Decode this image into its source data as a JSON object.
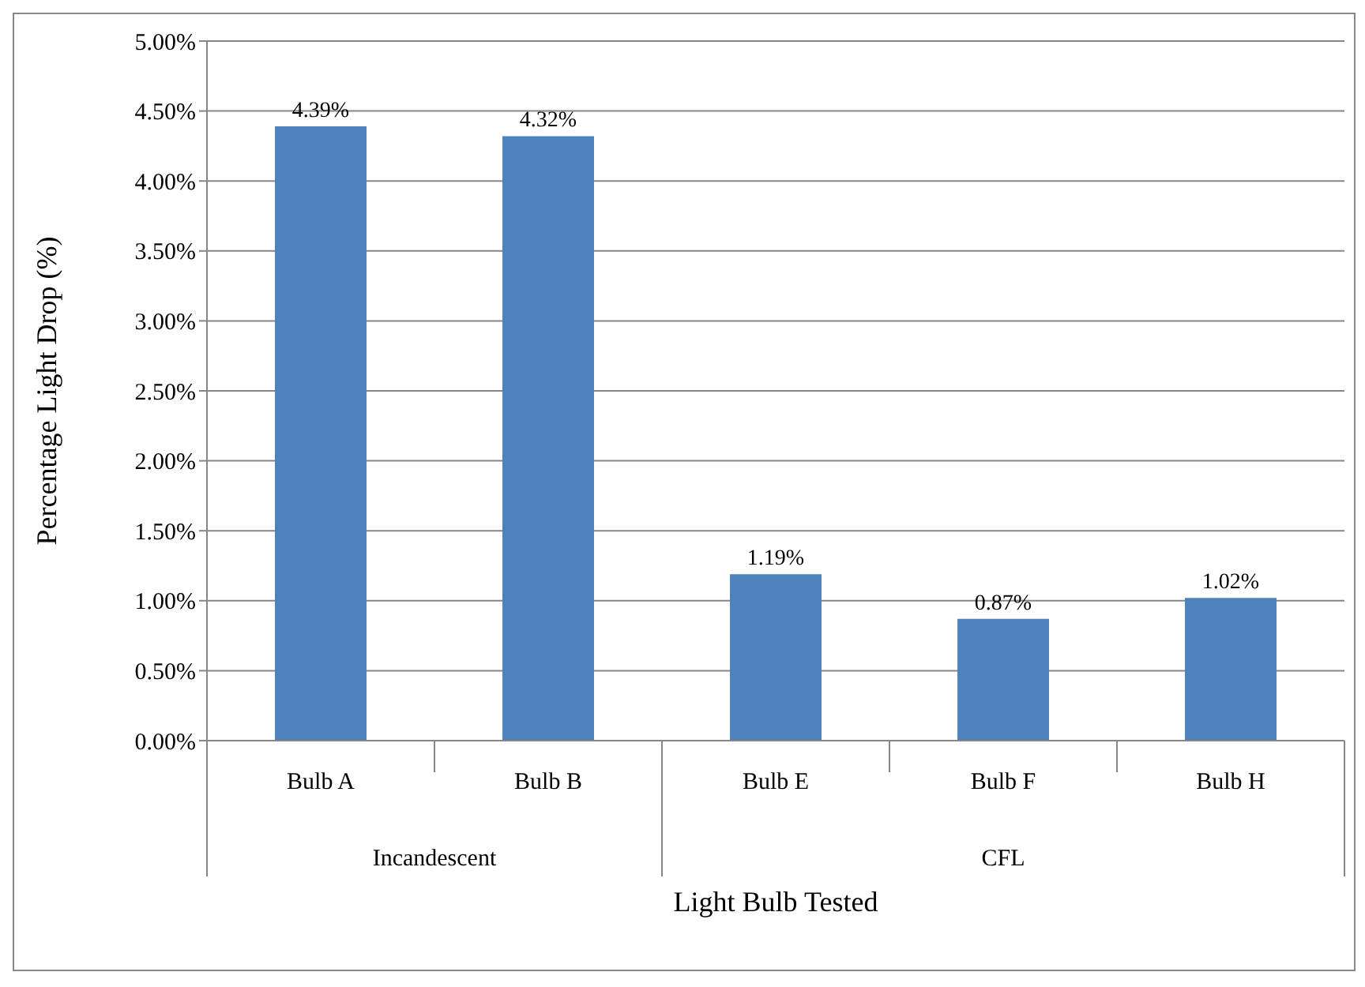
{
  "chart_data": {
    "type": "bar",
    "xlabel": "Light Bulb Tested",
    "ylabel": "Percentage Light Drop (%)",
    "categories": [
      "Bulb A",
      "Bulb B",
      "Bulb E",
      "Bulb F",
      "Bulb H"
    ],
    "values": [
      4.39,
      4.32,
      1.19,
      0.87,
      1.02
    ],
    "value_labels": [
      "4.39%",
      "4.32%",
      "1.19%",
      "0.87%",
      "1.02%"
    ],
    "color": "#4f81bd",
    "ylim": [
      0,
      5
    ],
    "yticks": [
      {
        "value": 0,
        "label": "0.00%"
      },
      {
        "value": 0.5,
        "label": "0.50%"
      },
      {
        "value": 1,
        "label": "1.00%"
      },
      {
        "value": 1.5,
        "label": "1.50%"
      },
      {
        "value": 2,
        "label": "2.00%"
      },
      {
        "value": 2.5,
        "label": "2.50%"
      },
      {
        "value": 3,
        "label": "3.00%"
      },
      {
        "value": 3.5,
        "label": "3.50%"
      },
      {
        "value": 4,
        "label": "4.00%"
      },
      {
        "value": 4.5,
        "label": "4.50%"
      },
      {
        "value": 5,
        "label": "5.00%"
      }
    ],
    "grid": "y",
    "annotations": [
      "Incandescent",
      "CFL"
    ]
  }
}
